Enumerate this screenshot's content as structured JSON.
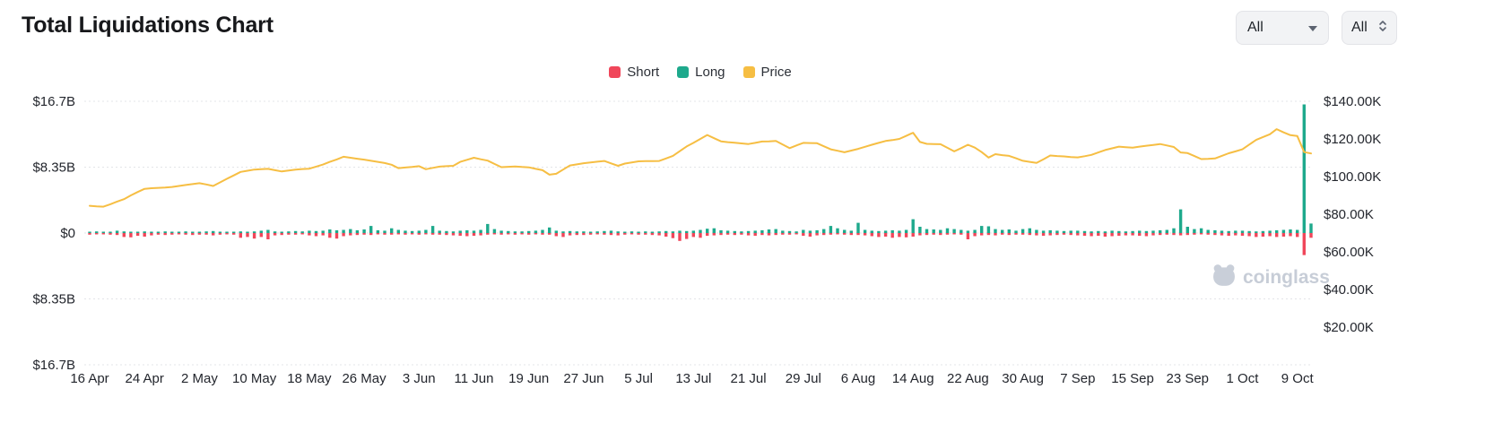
{
  "page": {
    "background": "#ffffff"
  },
  "header": {
    "title": "Total Liquidations Chart",
    "controls": [
      {
        "label": "All",
        "icon": "caret-down-icon"
      },
      {
        "label": "All",
        "icon": "up-down-icon"
      }
    ]
  },
  "legend": [
    {
      "label": "Short",
      "color": "#F0465A"
    },
    {
      "label": "Long",
      "color": "#1EA98C"
    },
    {
      "label": "Price",
      "color": "#F6BE43"
    }
  ],
  "watermark": {
    "text": "coinglass"
  },
  "chart_data": {
    "type": "bar",
    "overlay_type": "line",
    "title": "Total Liquidations Chart",
    "grid": "horizontal-dotted",
    "legend_position": "top-center",
    "x_tick_labels": [
      "16 Apr",
      "24 Apr",
      "2 May",
      "10 May",
      "18 May",
      "26 May",
      "3 Jun",
      "11 Jun",
      "19 Jun",
      "27 Jun",
      "5 Jul",
      "13 Jul",
      "21 Jul",
      "29 Jul",
      "6 Aug",
      "14 Aug",
      "22 Aug",
      "30 Aug",
      "7 Sep",
      "15 Sep",
      "23 Sep",
      "1 Oct",
      "9 Oct"
    ],
    "days_per_tick": 8,
    "left_axis": {
      "unit": "$B",
      "tick_labels": [
        "$16.7B",
        "$8.35B",
        "$0",
        "$8.35B",
        "$16.7B"
      ],
      "max": 16.7,
      "min": -16.7
    },
    "right_axis": {
      "unit": "$K",
      "tick_labels": [
        "$140.00K",
        "$120.00K",
        "$100.00K",
        "$80.00K",
        "$60.00K",
        "$40.00K",
        "$20.00K"
      ],
      "tick_step": 20,
      "max": 140,
      "min": 0
    },
    "series": [
      {
        "name": "Short",
        "direction": "down",
        "color": "#F0465A",
        "unit": "$B",
        "values": [
          0.2,
          0.1,
          0.15,
          0.2,
          0.25,
          0.5,
          0.55,
          0.35,
          0.45,
          0.3,
          0.2,
          0.25,
          0.2,
          0.15,
          0.2,
          0.25,
          0.2,
          0.2,
          0.3,
          0.2,
          0.15,
          0.2,
          0.6,
          0.5,
          0.7,
          0.5,
          0.8,
          0.3,
          0.25,
          0.2,
          0.2,
          0.15,
          0.3,
          0.4,
          0.3,
          0.6,
          0.7,
          0.4,
          0.3,
          0.25,
          0.2,
          0.25,
          0.15,
          0.2,
          0.2,
          0.15,
          0.2,
          0.15,
          0.2,
          0.15,
          0.2,
          0.2,
          0.25,
          0.3,
          0.35,
          0.4,
          0.35,
          0.3,
          0.2,
          0.15,
          0.2,
          0.15,
          0.2,
          0.15,
          0.2,
          0.15,
          0.2,
          0.2,
          0.4,
          0.5,
          0.3,
          0.25,
          0.25,
          0.2,
          0.15,
          0.2,
          0.25,
          0.3,
          0.2,
          0.15,
          0.2,
          0.2,
          0.25,
          0.3,
          0.45,
          0.65,
          1.0,
          0.75,
          0.5,
          0.6,
          0.35,
          0.3,
          0.25,
          0.2,
          0.25,
          0.2,
          0.3,
          0.35,
          0.25,
          0.3,
          0.25,
          0.2,
          0.2,
          0.15,
          0.35,
          0.45,
          0.3,
          0.25,
          0.2,
          0.15,
          0.2,
          0.25,
          0.25,
          0.3,
          0.4,
          0.5,
          0.45,
          0.6,
          0.5,
          0.55,
          0.45,
          0.3,
          0.25,
          0.2,
          0.25,
          0.2,
          0.15,
          0.2,
          0.8,
          0.4,
          0.3,
          0.25,
          0.3,
          0.2,
          0.25,
          0.2,
          0.2,
          0.25,
          0.3,
          0.35,
          0.3,
          0.25,
          0.2,
          0.25,
          0.3,
          0.35,
          0.4,
          0.35,
          0.45,
          0.4,
          0.35,
          0.3,
          0.3,
          0.35,
          0.4,
          0.3,
          0.25,
          0.2,
          0.25,
          0.3,
          0.25,
          0.2,
          0.15,
          0.2,
          0.25,
          0.3,
          0.35,
          0.3,
          0.35,
          0.4,
          0.5,
          0.45,
          0.4,
          0.5,
          0.45,
          0.4,
          0.5,
          2.8,
          0.6
        ]
      },
      {
        "name": "Long",
        "direction": "up",
        "color": "#1EA98C",
        "unit": "$B",
        "values": [
          0.15,
          0.2,
          0.1,
          0.12,
          0.3,
          0.2,
          0.15,
          0.1,
          0.2,
          0.15,
          0.1,
          0.2,
          0.1,
          0.15,
          0.2,
          0.1,
          0.15,
          0.2,
          0.25,
          0.15,
          0.1,
          0.15,
          0.2,
          0.15,
          0.2,
          0.3,
          0.4,
          0.2,
          0.15,
          0.2,
          0.25,
          0.2,
          0.3,
          0.25,
          0.3,
          0.45,
          0.35,
          0.4,
          0.5,
          0.35,
          0.45,
          0.9,
          0.35,
          0.3,
          0.6,
          0.4,
          0.3,
          0.25,
          0.3,
          0.4,
          0.9,
          0.3,
          0.25,
          0.2,
          0.3,
          0.35,
          0.3,
          0.4,
          1.15,
          0.5,
          0.3,
          0.25,
          0.2,
          0.2,
          0.25,
          0.3,
          0.4,
          0.7,
          0.3,
          0.2,
          0.25,
          0.2,
          0.2,
          0.15,
          0.2,
          0.25,
          0.3,
          0.2,
          0.15,
          0.2,
          0.15,
          0.2,
          0.15,
          0.2,
          0.25,
          0.2,
          0.3,
          0.25,
          0.3,
          0.4,
          0.55,
          0.6,
          0.35,
          0.3,
          0.25,
          0.2,
          0.25,
          0.3,
          0.35,
          0.45,
          0.5,
          0.3,
          0.25,
          0.2,
          0.4,
          0.3,
          0.35,
          0.5,
          0.9,
          0.6,
          0.4,
          0.3,
          1.3,
          0.4,
          0.3,
          0.25,
          0.3,
          0.35,
          0.3,
          0.4,
          1.75,
          0.8,
          0.5,
          0.45,
          0.4,
          0.6,
          0.5,
          0.4,
          0.3,
          0.4,
          0.9,
          0.85,
          0.5,
          0.4,
          0.45,
          0.3,
          0.5,
          0.6,
          0.4,
          0.3,
          0.35,
          0.3,
          0.25,
          0.3,
          0.3,
          0.25,
          0.2,
          0.25,
          0.2,
          0.3,
          0.25,
          0.2,
          0.25,
          0.3,
          0.25,
          0.3,
          0.35,
          0.4,
          0.6,
          3.0,
          0.8,
          0.5,
          0.6,
          0.4,
          0.35,
          0.3,
          0.25,
          0.3,
          0.3,
          0.25,
          0.2,
          0.25,
          0.3,
          0.35,
          0.4,
          0.45,
          0.4,
          16.3,
          1.2
        ]
      }
    ],
    "price_series": {
      "name": "Price",
      "color": "#F6BE43",
      "unit": "$K",
      "values": [
        84.5,
        84.2,
        84.0,
        85.3,
        86.7,
        88.0,
        90.0,
        91.8,
        93.5,
        93.8,
        94.0,
        94.2,
        94.5,
        95.0,
        95.5,
        96.0,
        96.5,
        95.8,
        95.0,
        96.9,
        98.8,
        100.6,
        102.5,
        103.1,
        103.7,
        103.9,
        104.1,
        103.4,
        102.7,
        103.2,
        103.7,
        104.0,
        104.2,
        105.3,
        106.4,
        107.8,
        109.1,
        110.5,
        110.0,
        109.5,
        109.0,
        108.4,
        107.8,
        107.2,
        106.3,
        104.5,
        104.8,
        105.1,
        105.5,
        103.9,
        104.6,
        105.3,
        105.5,
        105.7,
        107.8,
        108.9,
        110.0,
        109.2,
        108.5,
        106.7,
        105.0,
        105.2,
        105.4,
        105.1,
        104.9,
        104.1,
        103.4,
        101.0,
        101.5,
        103.7,
        105.9,
        106.5,
        107.1,
        107.5,
        107.9,
        108.3,
        107.0,
        105.7,
        106.9,
        107.5,
        108.1,
        108.2,
        108.2,
        108.3,
        109.6,
        111.0,
        113.5,
        116.0,
        117.9,
        120.0,
        122.1,
        120.4,
        118.7,
        118.3,
        118.0,
        117.6,
        117.3,
        117.9,
        118.6,
        118.7,
        118.9,
        117.0,
        115.1,
        116.5,
        117.9,
        117.8,
        117.7,
        116.1,
        114.5,
        113.7,
        112.9,
        113.8,
        114.7,
        115.8,
        116.9,
        117.9,
        118.9,
        119.4,
        120.0,
        121.6,
        123.3,
        118.4,
        117.4,
        117.3,
        117.2,
        115.3,
        113.4,
        115.1,
        116.9,
        115.4,
        113.0,
        110.1,
        111.9,
        111.4,
        111.0,
        109.7,
        108.4,
        107.8,
        107.3,
        109.2,
        111.2,
        110.9,
        110.7,
        110.4,
        110.2,
        110.8,
        111.5,
        112.8,
        114.1,
        115.0,
        115.9,
        115.6,
        115.4,
        115.9,
        116.4,
        116.8,
        117.3,
        116.5,
        115.7,
        112.8,
        112.5,
        110.9,
        109.3,
        109.4,
        109.6,
        111.0,
        112.4,
        113.4,
        114.5,
        117.0,
        119.5,
        121.0,
        122.5,
        125.2,
        123.5,
        122.0,
        121.5,
        113.0,
        112.3
      ]
    }
  }
}
